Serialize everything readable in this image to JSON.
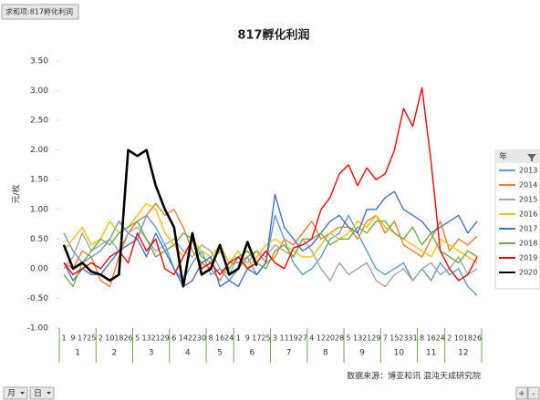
{
  "ui": {
    "field_button": "求和项:817孵化利润",
    "legend_header": "年",
    "month_button": "月",
    "day_button": "日",
    "expand_button": "+",
    "collapse_button": "-",
    "source": "数据来源：博亚和讯 混沌天成研究院"
  },
  "chart_data": {
    "type": "line",
    "title": "817孵化利润",
    "y_label": "元/枚",
    "category_groups": [
      {
        "label": "1",
        "categories": [
          "1",
          "9",
          "17",
          "25"
        ]
      },
      {
        "label": "2",
        "categories": [
          "2",
          "10",
          "18",
          "26"
        ]
      },
      {
        "label": "3",
        "categories": [
          "5",
          "13",
          "21",
          "29"
        ]
      },
      {
        "label": "4",
        "categories": [
          "6",
          "14",
          "22",
          "30"
        ]
      },
      {
        "label": "5",
        "categories": [
          "8",
          "16",
          "24"
        ]
      },
      {
        "label": "6",
        "categories": [
          "1",
          "9",
          "17",
          "25"
        ]
      },
      {
        "label": "7",
        "categories": [
          "3",
          "11",
          "19",
          "27"
        ]
      },
      {
        "label": "8",
        "categories": [
          "4",
          "12",
          "20",
          "28"
        ]
      },
      {
        "label": "9",
        "categories": [
          "5",
          "13",
          "21",
          "29"
        ]
      },
      {
        "label": "10",
        "categories": [
          "7",
          "15",
          "23",
          "31"
        ]
      },
      {
        "label": "11",
        "categories": [
          "8",
          "16",
          "24"
        ]
      },
      {
        "label": "12",
        "categories": [
          "2",
          "10",
          "18",
          "26"
        ]
      }
    ],
    "series": [
      {
        "name": "2013",
        "color": "#5b9bd5",
        "values": [
          0.6,
          0.3,
          0.1,
          0.2,
          0.3,
          0.5,
          0.8,
          0.6,
          0.5,
          0.9,
          0.7,
          0.4,
          0.0,
          -0.2,
          0.1,
          0.3,
          -0.1,
          0.0,
          -0.2,
          0.0,
          0.2,
          -0.1,
          0.1,
          0.9,
          0.5,
          0.1,
          -0.1,
          0.0,
          0.2,
          0.5,
          0.6,
          0.9,
          0.6,
          0.3,
          0.0,
          -0.1,
          0.0,
          0.1,
          -0.2,
          0.0,
          -0.2,
          0.1,
          -0.1,
          0.0,
          -0.3,
          -0.45
        ]
      },
      {
        "name": "2014",
        "color": "#ed7d31",
        "values": [
          0.1,
          0.0,
          0.3,
          0.2,
          -0.2,
          -0.3,
          0.2,
          0.6,
          0.8,
          0.9,
          1.1,
          0.9,
          1.0,
          0.7,
          0.3,
          0.1,
          0.0,
          -0.2,
          0.1,
          0.1,
          0.2,
          0.3,
          0.1,
          0.2,
          0.5,
          0.4,
          0.6,
          0.8,
          0.5,
          0.6,
          0.7,
          0.7,
          0.5,
          0.8,
          0.9,
          0.6,
          0.8,
          0.4,
          0.3,
          0.2,
          0.5,
          0.8,
          0.3,
          0.5,
          0.4,
          0.55
        ]
      },
      {
        "name": "2015",
        "color": "#a5a5a5",
        "values": [
          0.0,
          0.2,
          0.6,
          0.3,
          0.4,
          0.5,
          0.3,
          0.6,
          0.7,
          0.5,
          0.3,
          0.4,
          0.5,
          0.3,
          0.2,
          0.4,
          0.3,
          0.0,
          -0.1,
          0.2,
          0.1,
          0.3,
          0.2,
          0.4,
          0.3,
          0.2,
          0.5,
          0.3,
          0.0,
          -0.2,
          0.1,
          -0.1,
          0.0,
          0.1,
          -0.2,
          -0.3,
          -0.1,
          0.0,
          -0.2,
          0.0,
          0.1,
          -0.1,
          0.0,
          0.2,
          -0.1,
          0.0
        ]
      },
      {
        "name": "2016",
        "color": "#ffc000",
        "values": [
          0.3,
          0.5,
          0.7,
          0.4,
          0.5,
          0.8,
          0.6,
          0.7,
          0.9,
          1.1,
          1.0,
          0.6,
          0.4,
          0.2,
          0.5,
          0.3,
          0.2,
          0.4,
          0.1,
          0.3,
          0.0,
          0.2,
          0.4,
          0.5,
          0.4,
          0.3,
          0.2,
          0.2,
          0.4,
          0.6,
          0.5,
          0.6,
          0.8,
          0.7,
          0.9,
          0.7,
          0.6,
          0.5,
          0.4,
          0.3,
          0.2,
          0.5,
          0.4,
          0.3,
          0.2,
          0.1
        ]
      },
      {
        "name": "2017",
        "color": "#4472c4",
        "values": [
          0.1,
          -0.2,
          0.0,
          -0.1,
          -0.1,
          0.1,
          0.3,
          0.4,
          0.5,
          0.2,
          0.6,
          0.3,
          0.0,
          -0.3,
          -0.2,
          0.1,
          0.2,
          -0.3,
          -0.2,
          -0.3,
          0.0,
          -0.1,
          0.1,
          1.25,
          0.7,
          0.5,
          0.3,
          0.4,
          0.6,
          0.8,
          0.9,
          0.7,
          0.6,
          1.0,
          1.0,
          1.2,
          1.3,
          1.0,
          0.9,
          0.8,
          0.6,
          0.7,
          0.8,
          0.9,
          0.6,
          0.8
        ]
      },
      {
        "name": "2018",
        "color": "#70ad47",
        "values": [
          -0.1,
          -0.3,
          0.1,
          0.3,
          0.5,
          0.4,
          0.6,
          0.7,
          0.8,
          0.5,
          0.2,
          0.3,
          0.4,
          0.6,
          0.5,
          0.2,
          0.1,
          0.3,
          0.0,
          0.2,
          0.3,
          0.1,
          0.0,
          0.3,
          0.4,
          0.2,
          0.5,
          0.5,
          0.6,
          0.4,
          0.5,
          0.5,
          0.7,
          0.6,
          0.8,
          0.8,
          0.6,
          0.5,
          0.7,
          0.4,
          0.6,
          0.3,
          0.2,
          0.1,
          0.3,
          0.2
        ]
      },
      {
        "name": "2019",
        "color": "#ff0000",
        "values": [
          0.1,
          -0.1,
          0.0,
          0.1,
          0.0,
          0.2,
          0.3,
          0.1,
          0.6,
          0.3,
          0.5,
          0.0,
          -0.1,
          0.2,
          0.5,
          0.0,
          0.1,
          -0.1,
          0.1,
          0.2,
          0.0,
          0.1,
          0.3,
          0.1,
          0.0,
          0.35,
          0.4,
          0.5,
          1.0,
          1.2,
          1.6,
          1.75,
          1.4,
          1.7,
          1.5,
          1.6,
          2.0,
          2.7,
          2.4,
          3.05,
          1.8,
          0.3,
          0.0,
          -0.2,
          -0.1,
          0.2
        ]
      },
      {
        "name": "2020",
        "color": "#000000",
        "values": [
          0.4,
          0.0,
          0.1,
          -0.05,
          -0.1,
          -0.2,
          -0.1,
          2.0,
          1.9,
          2.0,
          1.4,
          1.0,
          0.7,
          -0.3,
          0.6,
          -0.1,
          0.0,
          0.4,
          -0.1,
          0.0,
          0.45,
          0.05,
          null,
          null,
          null,
          null,
          null,
          null,
          null,
          null,
          null,
          null,
          null,
          null,
          null,
          null,
          null,
          null,
          null,
          null,
          null,
          null,
          null,
          null,
          null,
          null
        ]
      }
    ],
    "ylim": [
      -1,
      3.5
    ],
    "yticks": [
      {
        "value": -1,
        "label": "-1.00"
      },
      {
        "value": -0.5,
        "label": "-0.50"
      },
      {
        "value": 0,
        "label": "0.00"
      },
      {
        "value": 0.5,
        "label": "0.50"
      },
      {
        "value": 1,
        "label": "1.00"
      },
      {
        "value": 1.5,
        "label": "1.50"
      },
      {
        "value": 2,
        "label": "2.00"
      },
      {
        "value": 2.5,
        "label": "2.50"
      },
      {
        "value": 3,
        "label": "3.00"
      },
      {
        "value": 3.5,
        "label": "3.50"
      }
    ],
    "grid": false,
    "legend": "right"
  }
}
